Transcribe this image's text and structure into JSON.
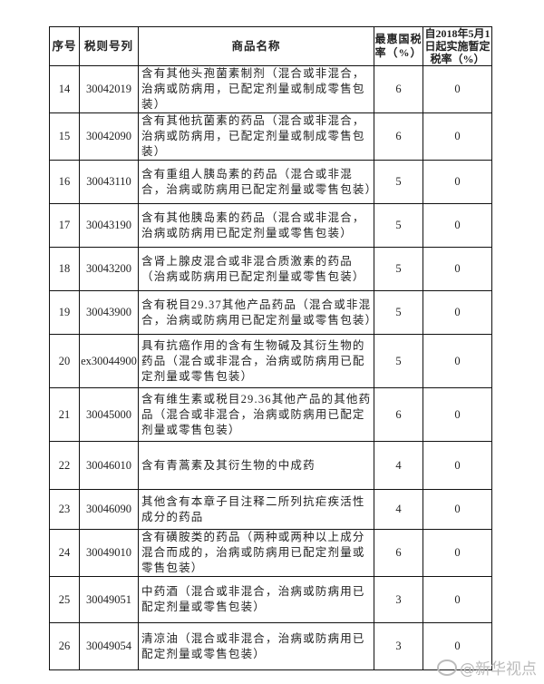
{
  "header": {
    "seq": "序号",
    "code": "税则号列",
    "name": "商品名称",
    "mfn_rate": "最惠国税率（%）",
    "interim_rate": "自2018年5月1日起实施暂定税率（%）"
  },
  "rows": [
    {
      "seq": "14",
      "code": "30042019",
      "name": "含有其他头孢菌素制剂（混合或非混合，治病或防病用，已配定剂量或制成零售包装）",
      "mfn": "6",
      "interim": "0"
    },
    {
      "seq": "15",
      "code": "30042090",
      "name": "含有其他抗菌素的药品（混合或非混合，治病或防病用，已配定剂量或制成零售包装）",
      "mfn": "6",
      "interim": "0"
    },
    {
      "seq": "16",
      "code": "30043110",
      "name": "含有重组人胰岛素的药品（混合或非混合，治病或防病用已配定剂量或零售包装）",
      "mfn": "5",
      "interim": "0"
    },
    {
      "seq": "17",
      "code": "30043190",
      "name": "含有其他胰岛素的药品（混合或非混合，治病或防病用已配定剂量或零售包装）",
      "mfn": "5",
      "interim": "0"
    },
    {
      "seq": "18",
      "code": "30043200",
      "name": "含肾上腺皮混合或非混合质激素的药品（治病或防病用已配定剂量或零售包装）",
      "mfn": "5",
      "interim": "0"
    },
    {
      "seq": "19",
      "code": "30043900",
      "name": "含有税目29.37其他产品药品（混合或非混合，治病或防病用已配定剂量或零售包装）",
      "mfn": "5",
      "interim": "0"
    },
    {
      "seq": "20",
      "code": "ex30044900",
      "name": "具有抗癌作用的含有生物碱及其衍生物的药品（混合或非混合，治病或防病用已配定剂量或零售包装）",
      "mfn": "5",
      "interim": "0"
    },
    {
      "seq": "21",
      "code": "30045000",
      "name": "含有维生素或税目29.36其他产品的其他药品（混合或非混合，治病或防病用已配定剂量或零售包装）",
      "mfn": "6",
      "interim": "0"
    },
    {
      "seq": "22",
      "code": "30046010",
      "name": "含有青蒿素及其衍生物的中成药",
      "mfn": "4",
      "interim": "0"
    },
    {
      "seq": "23",
      "code": "30046090",
      "name": "其他含有本章子目注释二所列抗疟疾活性成分的药品",
      "mfn": "4",
      "interim": "0"
    },
    {
      "seq": "24",
      "code": "30049010",
      "name": "含有磺胺类的药品（两种或两种以上成分混合而成的，治病或防病用已配定剂量或零售包装）",
      "mfn": "6",
      "interim": "0"
    },
    {
      "seq": "25",
      "code": "30049051",
      "name": "中药酒（混合或非混合，治病或防病用已配定剂量或零售包装）",
      "mfn": "3",
      "interim": "0"
    },
    {
      "seq": "26",
      "code": "30049054",
      "name": "清凉油（混合或非混合，治病或防病用已配定剂量或零售包装）",
      "mfn": "3",
      "interim": "0"
    }
  ],
  "watermark": "@新华视点"
}
